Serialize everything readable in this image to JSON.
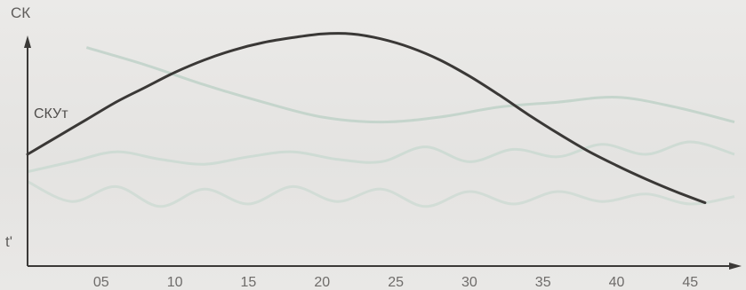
{
  "chart_data": {
    "type": "line",
    "ylabel": "СК",
    "xlabel": "t'",
    "x_ticks": [
      "05",
      "10",
      "15",
      "20",
      "25",
      "30",
      "35",
      "40",
      "45"
    ],
    "x_tick_values": [
      5,
      10,
      15,
      20,
      25,
      30,
      35,
      40,
      45
    ],
    "xlim": [
      0,
      48
    ],
    "ylim": [
      0,
      1
    ],
    "grid": false,
    "series": [
      {
        "name": "СКУт",
        "color": "#3a3836",
        "points": [
          [
            0,
            0.45
          ],
          [
            2,
            0.52
          ],
          [
            4,
            0.59
          ],
          [
            6,
            0.66
          ],
          [
            8,
            0.72
          ],
          [
            10,
            0.78
          ],
          [
            12,
            0.83
          ],
          [
            14,
            0.87
          ],
          [
            16,
            0.9
          ],
          [
            18,
            0.92
          ],
          [
            20,
            0.935
          ],
          [
            22,
            0.935
          ],
          [
            24,
            0.915
          ],
          [
            26,
            0.88
          ],
          [
            28,
            0.83
          ],
          [
            30,
            0.765
          ],
          [
            32,
            0.69
          ],
          [
            34,
            0.61
          ],
          [
            36,
            0.535
          ],
          [
            38,
            0.465
          ],
          [
            40,
            0.405
          ],
          [
            42,
            0.35
          ],
          [
            44,
            0.3
          ],
          [
            46,
            0.255
          ]
        ]
      }
    ],
    "background_traces": [
      {
        "color": "#b9cfc4",
        "points": [
          [
            4,
            0.88
          ],
          [
            8,
            0.81
          ],
          [
            12,
            0.73
          ],
          [
            16,
            0.66
          ],
          [
            20,
            0.6
          ],
          [
            24,
            0.58
          ],
          [
            28,
            0.6
          ],
          [
            32,
            0.64
          ],
          [
            36,
            0.66
          ],
          [
            40,
            0.68
          ],
          [
            44,
            0.64
          ],
          [
            48,
            0.58
          ]
        ]
      },
      {
        "color": "#c7d8cf",
        "points": [
          [
            0,
            0.38
          ],
          [
            3,
            0.42
          ],
          [
            6,
            0.46
          ],
          [
            9,
            0.43
          ],
          [
            12,
            0.41
          ],
          [
            15,
            0.44
          ],
          [
            18,
            0.46
          ],
          [
            21,
            0.43
          ],
          [
            24,
            0.42
          ],
          [
            27,
            0.48
          ],
          [
            30,
            0.42
          ],
          [
            33,
            0.47
          ],
          [
            36,
            0.44
          ],
          [
            39,
            0.49
          ],
          [
            42,
            0.45
          ],
          [
            45,
            0.5
          ],
          [
            48,
            0.45
          ]
        ]
      },
      {
        "color": "#cbdad2",
        "points": [
          [
            0,
            0.34
          ],
          [
            3,
            0.26
          ],
          [
            6,
            0.32
          ],
          [
            9,
            0.24
          ],
          [
            12,
            0.31
          ],
          [
            15,
            0.25
          ],
          [
            18,
            0.32
          ],
          [
            21,
            0.26
          ],
          [
            24,
            0.31
          ],
          [
            27,
            0.24
          ],
          [
            30,
            0.3
          ],
          [
            33,
            0.25
          ],
          [
            36,
            0.3
          ],
          [
            39,
            0.26
          ],
          [
            42,
            0.29
          ],
          [
            45,
            0.25
          ],
          [
            48,
            0.28
          ]
        ]
      }
    ]
  }
}
